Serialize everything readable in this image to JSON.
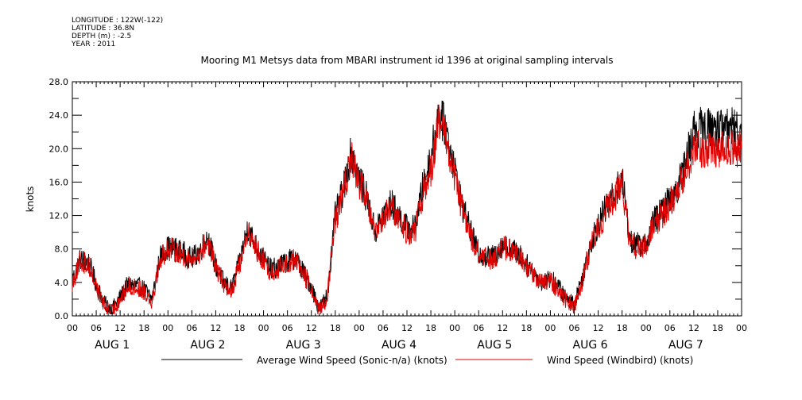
{
  "header": {
    "longitude": "LONGITUDE : 122W(-122)",
    "latitude": "LATITUDE : 36.8N",
    "depth": "DEPTH (m) : -2.5",
    "year": "YEAR : 2011"
  },
  "chart_data": {
    "type": "line",
    "title": "Mooring M1 Metsys data from MBARI instrument id 1396 at original sampling intervals",
    "ylabel": "knots",
    "xlabel": "",
    "ylim": [
      0,
      28
    ],
    "y_ticks": [
      "0.0",
      "4.0",
      "8.0",
      "12.0",
      "16.0",
      "20.0",
      "24.0",
      "28.0"
    ],
    "x_range_hours": [
      0,
      168
    ],
    "x_tick_labels": [
      "00",
      "06",
      "12",
      "18",
      "00",
      "06",
      "12",
      "18",
      "00",
      "06",
      "12",
      "18",
      "00",
      "06",
      "12",
      "18",
      "00",
      "06",
      "12",
      "18",
      "00",
      "06",
      "12",
      "18",
      "00",
      "06",
      "12",
      "18",
      "00"
    ],
    "day_labels": [
      "AUG  1",
      "AUG  2",
      "AUG  3",
      "AUG  4",
      "AUG  5",
      "AUG  6",
      "AUG  7"
    ],
    "grid": false,
    "legend_position": "bottom",
    "colors": {
      "avg": "#000000",
      "windbird": "#e00000"
    },
    "series": [
      {
        "name": "Average Wind Speed (Sonic-n/a) (knots)",
        "key": "avg",
        "hour_step": 2,
        "values": [
          4.2,
          6.8,
          6.5,
          3.8,
          1.5,
          0.8,
          2.2,
          3.8,
          3.6,
          3.2,
          2.0,
          7.0,
          8.2,
          8.0,
          7.5,
          6.8,
          7.8,
          9.5,
          6.0,
          4.0,
          3.2,
          6.5,
          10.5,
          8.5,
          6.8,
          5.5,
          6.0,
          6.5,
          7.0,
          5.2,
          3.5,
          0.8,
          2.5,
          12.0,
          15.0,
          19.5,
          16.5,
          14.0,
          10.0,
          12.0,
          13.5,
          12.0,
          10.5,
          10.5,
          15.5,
          19.0,
          24.5,
          22.0,
          17.5,
          13.0,
          10.0,
          7.5,
          7.0,
          7.2,
          8.5,
          8.0,
          7.5,
          6.2,
          5.0,
          4.0,
          4.5,
          3.5,
          2.0,
          1.5,
          4.5,
          8.5,
          11.0,
          13.0,
          14.5,
          16.5,
          9.0,
          8.5,
          8.5,
          11.5,
          12.5,
          14.0,
          15.5,
          18.5,
          22.5
        ]
      },
      {
        "name": "Wind Speed (Windbird) (knots)",
        "key": "windbird",
        "hour_step": 2,
        "values": [
          4.0,
          6.5,
          6.2,
          3.5,
          1.2,
          0.5,
          2.0,
          3.5,
          3.4,
          3.0,
          1.8,
          6.8,
          8.0,
          7.8,
          7.2,
          6.5,
          7.5,
          9.0,
          5.8,
          3.8,
          3.0,
          6.2,
          10.0,
          8.2,
          6.5,
          5.2,
          5.8,
          6.2,
          6.8,
          5.0,
          3.2,
          0.6,
          2.2,
          11.5,
          14.5,
          19.0,
          16.0,
          13.5,
          9.5,
          11.5,
          13.0,
          11.5,
          10.0,
          10.0,
          14.5,
          17.5,
          23.0,
          21.0,
          16.5,
          12.5,
          9.5,
          7.2,
          6.8,
          7.0,
          8.2,
          7.8,
          7.2,
          6.0,
          4.8,
          3.8,
          4.2,
          3.2,
          1.8,
          1.2,
          4.2,
          8.2,
          10.5,
          12.5,
          14.0,
          16.0,
          8.5,
          8.0,
          8.2,
          11.0,
          12.0,
          13.5,
          15.0,
          17.5,
          20.0
        ]
      }
    ]
  }
}
